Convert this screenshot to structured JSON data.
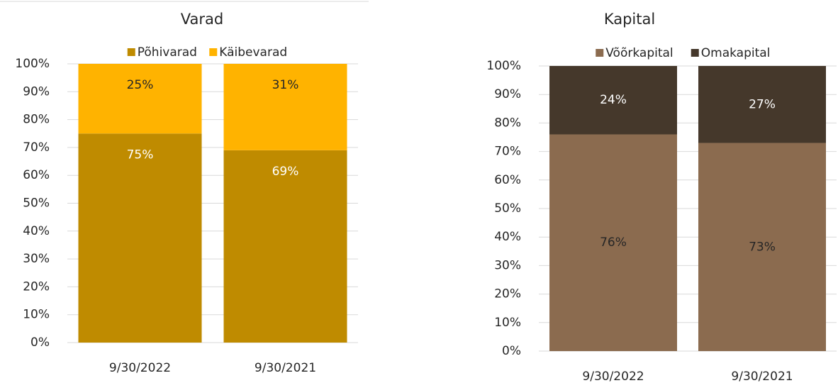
{
  "chart_data": [
    {
      "type": "bar",
      "stacked": true,
      "title": "Varad",
      "categories": [
        "9/30/2022",
        "9/30/2021"
      ],
      "series": [
        {
          "name": "Põhivarad",
          "color": "#bf8b00",
          "values": [
            75,
            69
          ],
          "value_labels": [
            "75%",
            "69%"
          ]
        },
        {
          "name": "Käibevarad",
          "color": "#ffb300",
          "values": [
            25,
            31
          ],
          "value_labels": [
            "25%",
            "31%"
          ]
        }
      ],
      "ylim": [
        0,
        100
      ],
      "yticks": [
        {
          "value": 0,
          "label": "0%"
        },
        {
          "value": 10,
          "label": "10%"
        },
        {
          "value": 20,
          "label": "20%"
        },
        {
          "value": 30,
          "label": "30%"
        },
        {
          "value": 40,
          "label": "40%"
        },
        {
          "value": 50,
          "label": "50%"
        },
        {
          "value": 60,
          "label": "60%"
        },
        {
          "value": 70,
          "label": "70%"
        },
        {
          "value": 80,
          "label": "80%"
        },
        {
          "value": 90,
          "label": "90%"
        },
        {
          "value": 100,
          "label": "100%"
        }
      ],
      "grid": true,
      "legend": "top"
    },
    {
      "type": "bar",
      "stacked": true,
      "title": "Kapital",
      "categories": [
        "9/30/2022",
        "9/30/2021"
      ],
      "series": [
        {
          "name": "Võõrkapital",
          "color": "#8b6b4f",
          "values": [
            76,
            73
          ],
          "value_labels": [
            "76%",
            "73%"
          ]
        },
        {
          "name": "Omakapital",
          "color": "#45382b",
          "values": [
            24,
            27
          ],
          "value_labels": [
            "24%",
            "27%"
          ]
        }
      ],
      "ylim": [
        0,
        100
      ],
      "yticks": [
        {
          "value": 0,
          "label": "0%"
        },
        {
          "value": 10,
          "label": "10%"
        },
        {
          "value": 20,
          "label": "20%"
        },
        {
          "value": 30,
          "label": "30%"
        },
        {
          "value": 40,
          "label": "40%"
        },
        {
          "value": 50,
          "label": "50%"
        },
        {
          "value": 60,
          "label": "60%"
        },
        {
          "value": 70,
          "label": "70%"
        },
        {
          "value": 80,
          "label": "80%"
        },
        {
          "value": 90,
          "label": "90%"
        },
        {
          "value": 100,
          "label": "100%"
        }
      ],
      "grid": true,
      "legend": "top"
    }
  ]
}
